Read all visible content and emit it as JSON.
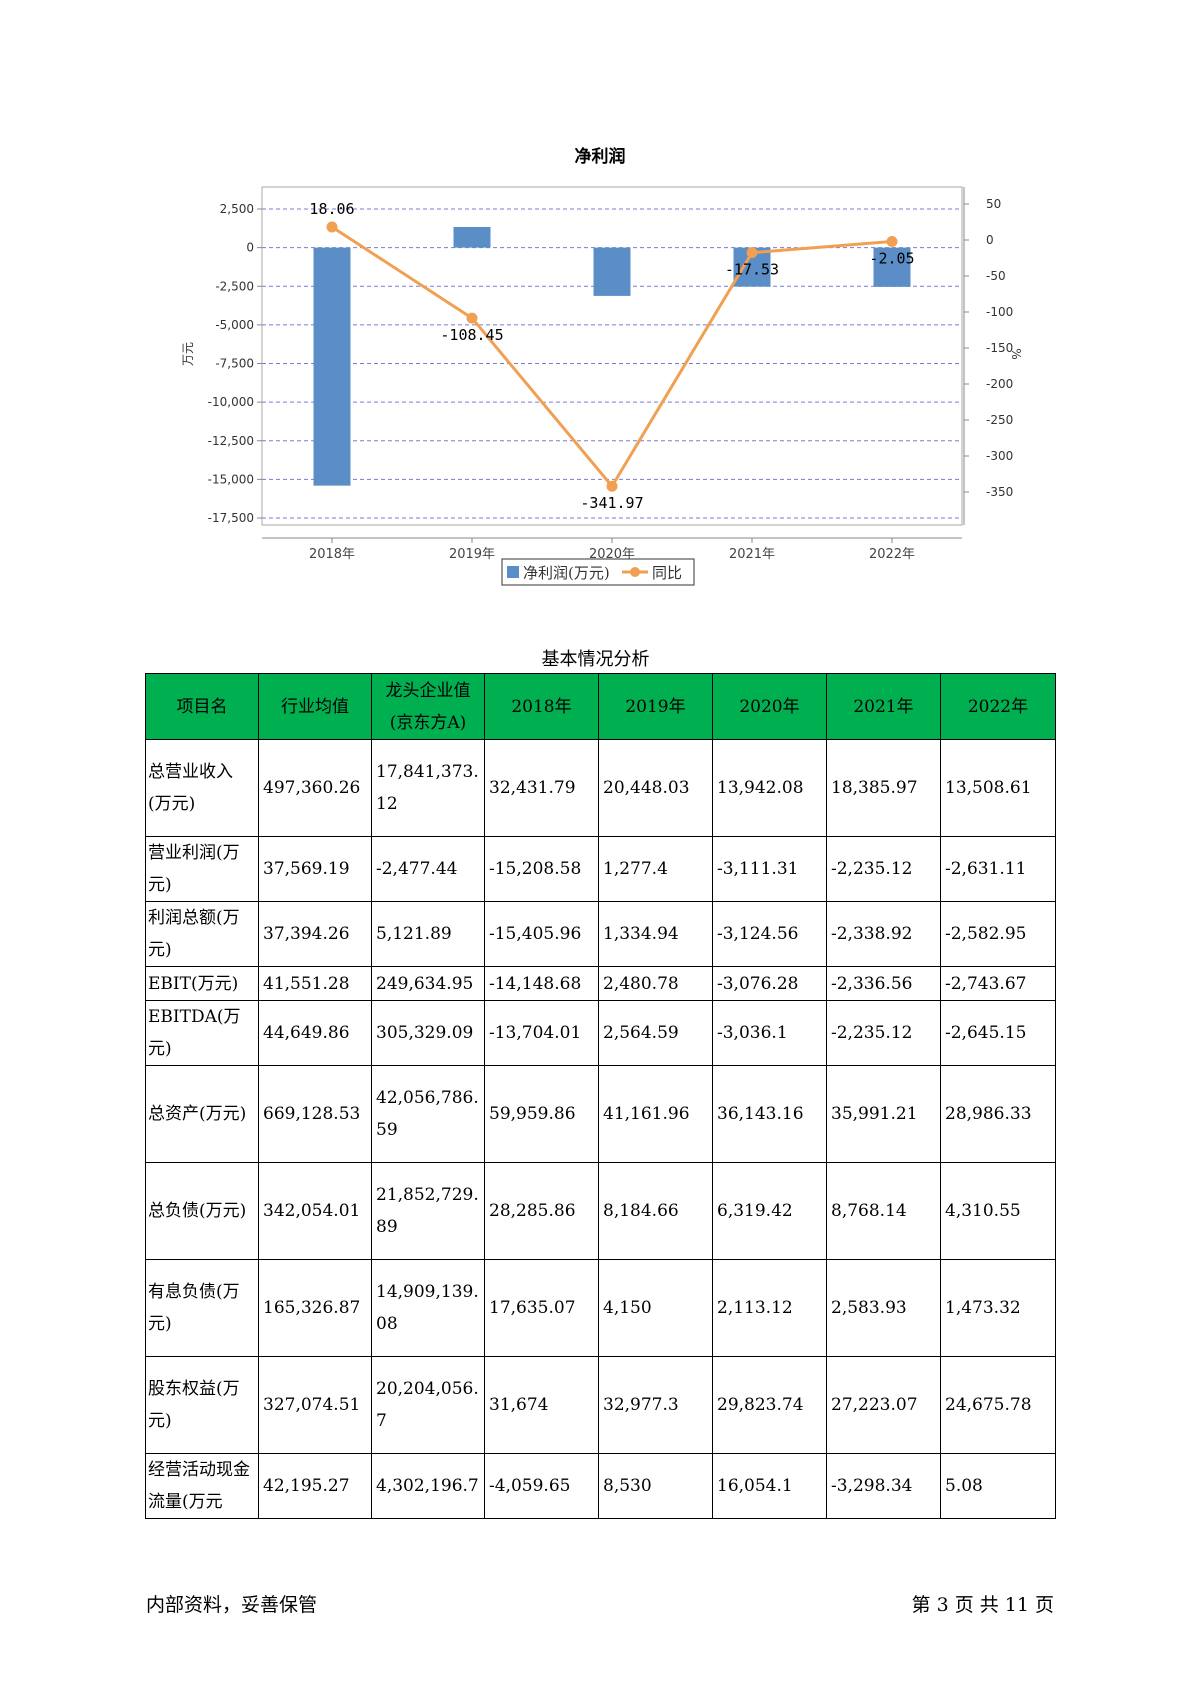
{
  "chart_data": {
    "type": "bar",
    "title": "净利润",
    "categories": [
      "2018年",
      "2019年",
      "2020年",
      "2021年",
      "2022年"
    ],
    "series": [
      {
        "name": "净利润(万元)",
        "type": "bar",
        "axis": "left",
        "color": "#5b8ec6",
        "values": [
          -15405.96,
          1334.94,
          -3124.56,
          -2525.0,
          -2538.0
        ]
      },
      {
        "name": "同比",
        "type": "line",
        "axis": "right",
        "color": "#f0a050",
        "values": [
          18.06,
          -108.45,
          -341.97,
          -17.53,
          -2.05
        ],
        "labels": [
          "18.06",
          "-108.45",
          "-341.97",
          "-17.53",
          "-2.05"
        ]
      }
    ],
    "ylabel": "万元",
    "y2label": "%",
    "ylim": [
      -17500,
      2500
    ],
    "y2lim": [
      -350,
      50
    ],
    "yticks": [
      "2,500",
      "0",
      "-2,500",
      "-5,000",
      "-7,500",
      "-10,000",
      "-12,500",
      "-15,000",
      "-17,500"
    ],
    "y2ticks": [
      "50",
      "0",
      "-50",
      "-100",
      "-150",
      "-200",
      "-250",
      "-300",
      "-350"
    ],
    "grid": true,
    "legend": "bottom"
  },
  "table": {
    "title": "基本情况分析",
    "headers": [
      "项目名",
      "行业均值",
      "龙头企业值(京东方A)",
      "2018年",
      "2019年",
      "2020年",
      "2021年",
      "2022年"
    ],
    "rows": [
      [
        "总营业收入(万元)",
        "497,360.26",
        "17,841,373.12",
        "32,431.79",
        "20,448.03",
        "13,942.08",
        "18,385.97",
        "13,508.61"
      ],
      [
        "营业利润(万元)",
        "37,569.19",
        "-2,477.44",
        "-15,208.58",
        "1,277.4",
        "-3,111.31",
        "-2,235.12",
        "-2,631.11"
      ],
      [
        "利润总额(万元)",
        "37,394.26",
        "5,121.89",
        "-15,405.96",
        "1,334.94",
        "-3,124.56",
        "-2,338.92",
        "-2,582.95"
      ],
      [
        "EBIT(万元)",
        "41,551.28",
        "249,634.95",
        "-14,148.68",
        "2,480.78",
        "-3,076.28",
        "-2,336.56",
        "-2,743.67"
      ],
      [
        "EBITDA(万元)",
        "44,649.86",
        "305,329.09",
        "-13,704.01",
        "2,564.59",
        "-3,036.1",
        "-2,235.12",
        "-2,645.15"
      ],
      [
        "总资产(万元)",
        "669,128.53",
        "42,056,786.59",
        "59,959.86",
        "41,161.96",
        "36,143.16",
        "35,991.21",
        "28,986.33"
      ],
      [
        "总负债(万元)",
        "342,054.01",
        "21,852,729.89",
        "28,285.86",
        "8,184.66",
        "6,319.42",
        "8,768.14",
        "4,310.55"
      ],
      [
        "有息负债(万元)",
        "165,326.87",
        "14,909,139.08",
        "17,635.07",
        "4,150",
        "2,113.12",
        "2,583.93",
        "1,473.32"
      ],
      [
        "股东权益(万元)",
        "327,074.51",
        "20,204,056.7",
        "31,674",
        "32,977.3",
        "29,823.74",
        "27,223.07",
        "24,675.78"
      ],
      [
        "经营活动现金流量(万元",
        "42,195.27",
        "4,302,196.7",
        "-4,059.65",
        "8,530",
        "16,054.1",
        "-3,298.34",
        "5.08"
      ]
    ]
  },
  "footer": {
    "left": "内部资料，妥善保管",
    "right": "第 3 页  共 11 页"
  }
}
